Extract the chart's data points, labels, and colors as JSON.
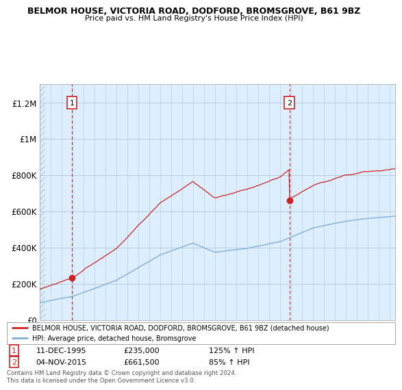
{
  "title": "BELMOR HOUSE, VICTORIA ROAD, DODFORD, BROMSGROVE, B61 9BZ",
  "subtitle": "Price paid vs. HM Land Registry's House Price Index (HPI)",
  "ylabel_ticks": [
    "£0",
    "£200K",
    "£400K",
    "£600K",
    "£800K",
    "£1M",
    "£1.2M"
  ],
  "ytick_values": [
    0,
    200000,
    400000,
    600000,
    800000,
    1000000,
    1200000
  ],
  "ylim": [
    0,
    1300000
  ],
  "xlim_start": 1993,
  "xlim_end": 2025.5,
  "sale1_x": 1995.94,
  "sale1_y": 235000,
  "sale2_x": 2015.84,
  "sale2_y": 661500,
  "line1_color": "#cc2222",
  "line2_color": "#7fafd4",
  "bg_color": "#ddeeff",
  "hatch_color": "#c8d8e8",
  "grid_color": "#b0c8dc",
  "legend1_text": "BELMOR HOUSE, VICTORIA ROAD, DODFORD, BROMSGROVE, B61 9BZ (detached house)",
  "legend2_text": "HPI: Average price, detached house, Bromsgrove",
  "sale1_date": "11-DEC-1995",
  "sale1_price": "£235,000",
  "sale1_hpi": "125% ↑ HPI",
  "sale2_date": "04-NOV-2015",
  "sale2_price": "£661,500",
  "sale2_hpi": "85% ↑ HPI",
  "footnote": "Contains HM Land Registry data © Crown copyright and database right 2024.\nThis data is licensed under the Open Government Licence v3.0."
}
